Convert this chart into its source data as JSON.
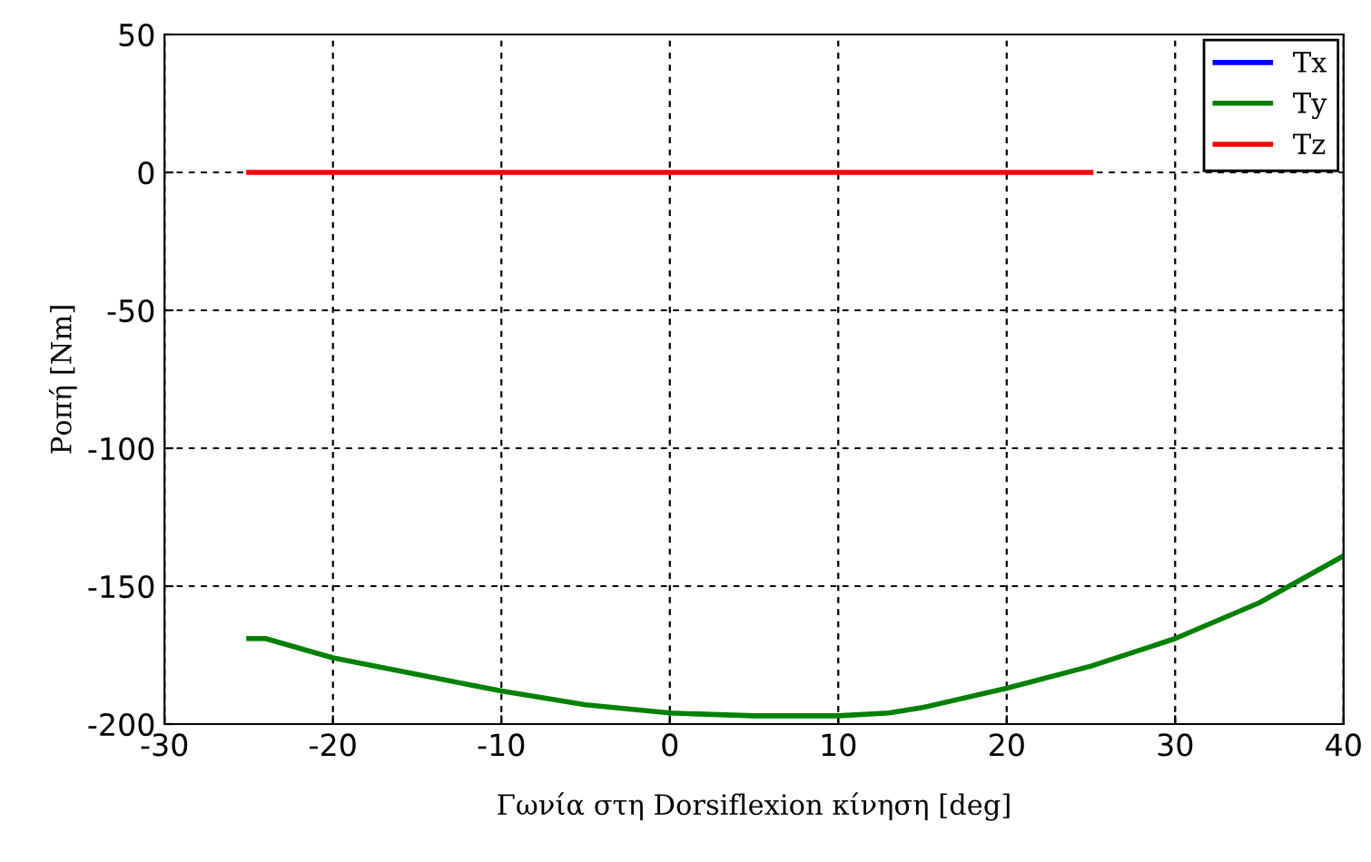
{
  "chart_data": {
    "type": "line",
    "xlabel": "Γωνία στη Dorsiflexion κίνηση [deg]",
    "ylabel": "Ροπή [Nm]",
    "xlim": [
      -30,
      40
    ],
    "xticks": [
      -30,
      -20,
      -10,
      0,
      10,
      20,
      30,
      40
    ],
    "ylim": [
      -200,
      50
    ],
    "yticks": [
      -200,
      -150,
      -100,
      -50,
      0,
      50
    ],
    "grid": true,
    "legend": "top right",
    "line_style": "solid",
    "marker": "none",
    "series": [
      {
        "name": "Tx",
        "color": "#0000ff"
      },
      {
        "name": "Ty",
        "color": "#008000",
        "x": [
          -25,
          -24,
          -20,
          -15,
          -10,
          -5,
          0,
          5,
          10,
          13,
          15,
          20,
          25,
          30,
          35,
          40
        ],
        "values": [
          -169,
          -169,
          -176,
          -182,
          -188,
          -193,
          -196,
          -197,
          -197,
          -196,
          -194,
          -187,
          -179,
          -169,
          -156,
          -139
        ]
      },
      {
        "name": "Tz",
        "color": "#ff0000",
        "x": [
          -25,
          -20,
          -15,
          -10,
          -5,
          0,
          5,
          10,
          15,
          20,
          25
        ],
        "values": [
          0,
          0,
          0,
          0,
          0,
          0,
          0,
          0,
          0,
          0,
          0
        ]
      }
    ]
  }
}
